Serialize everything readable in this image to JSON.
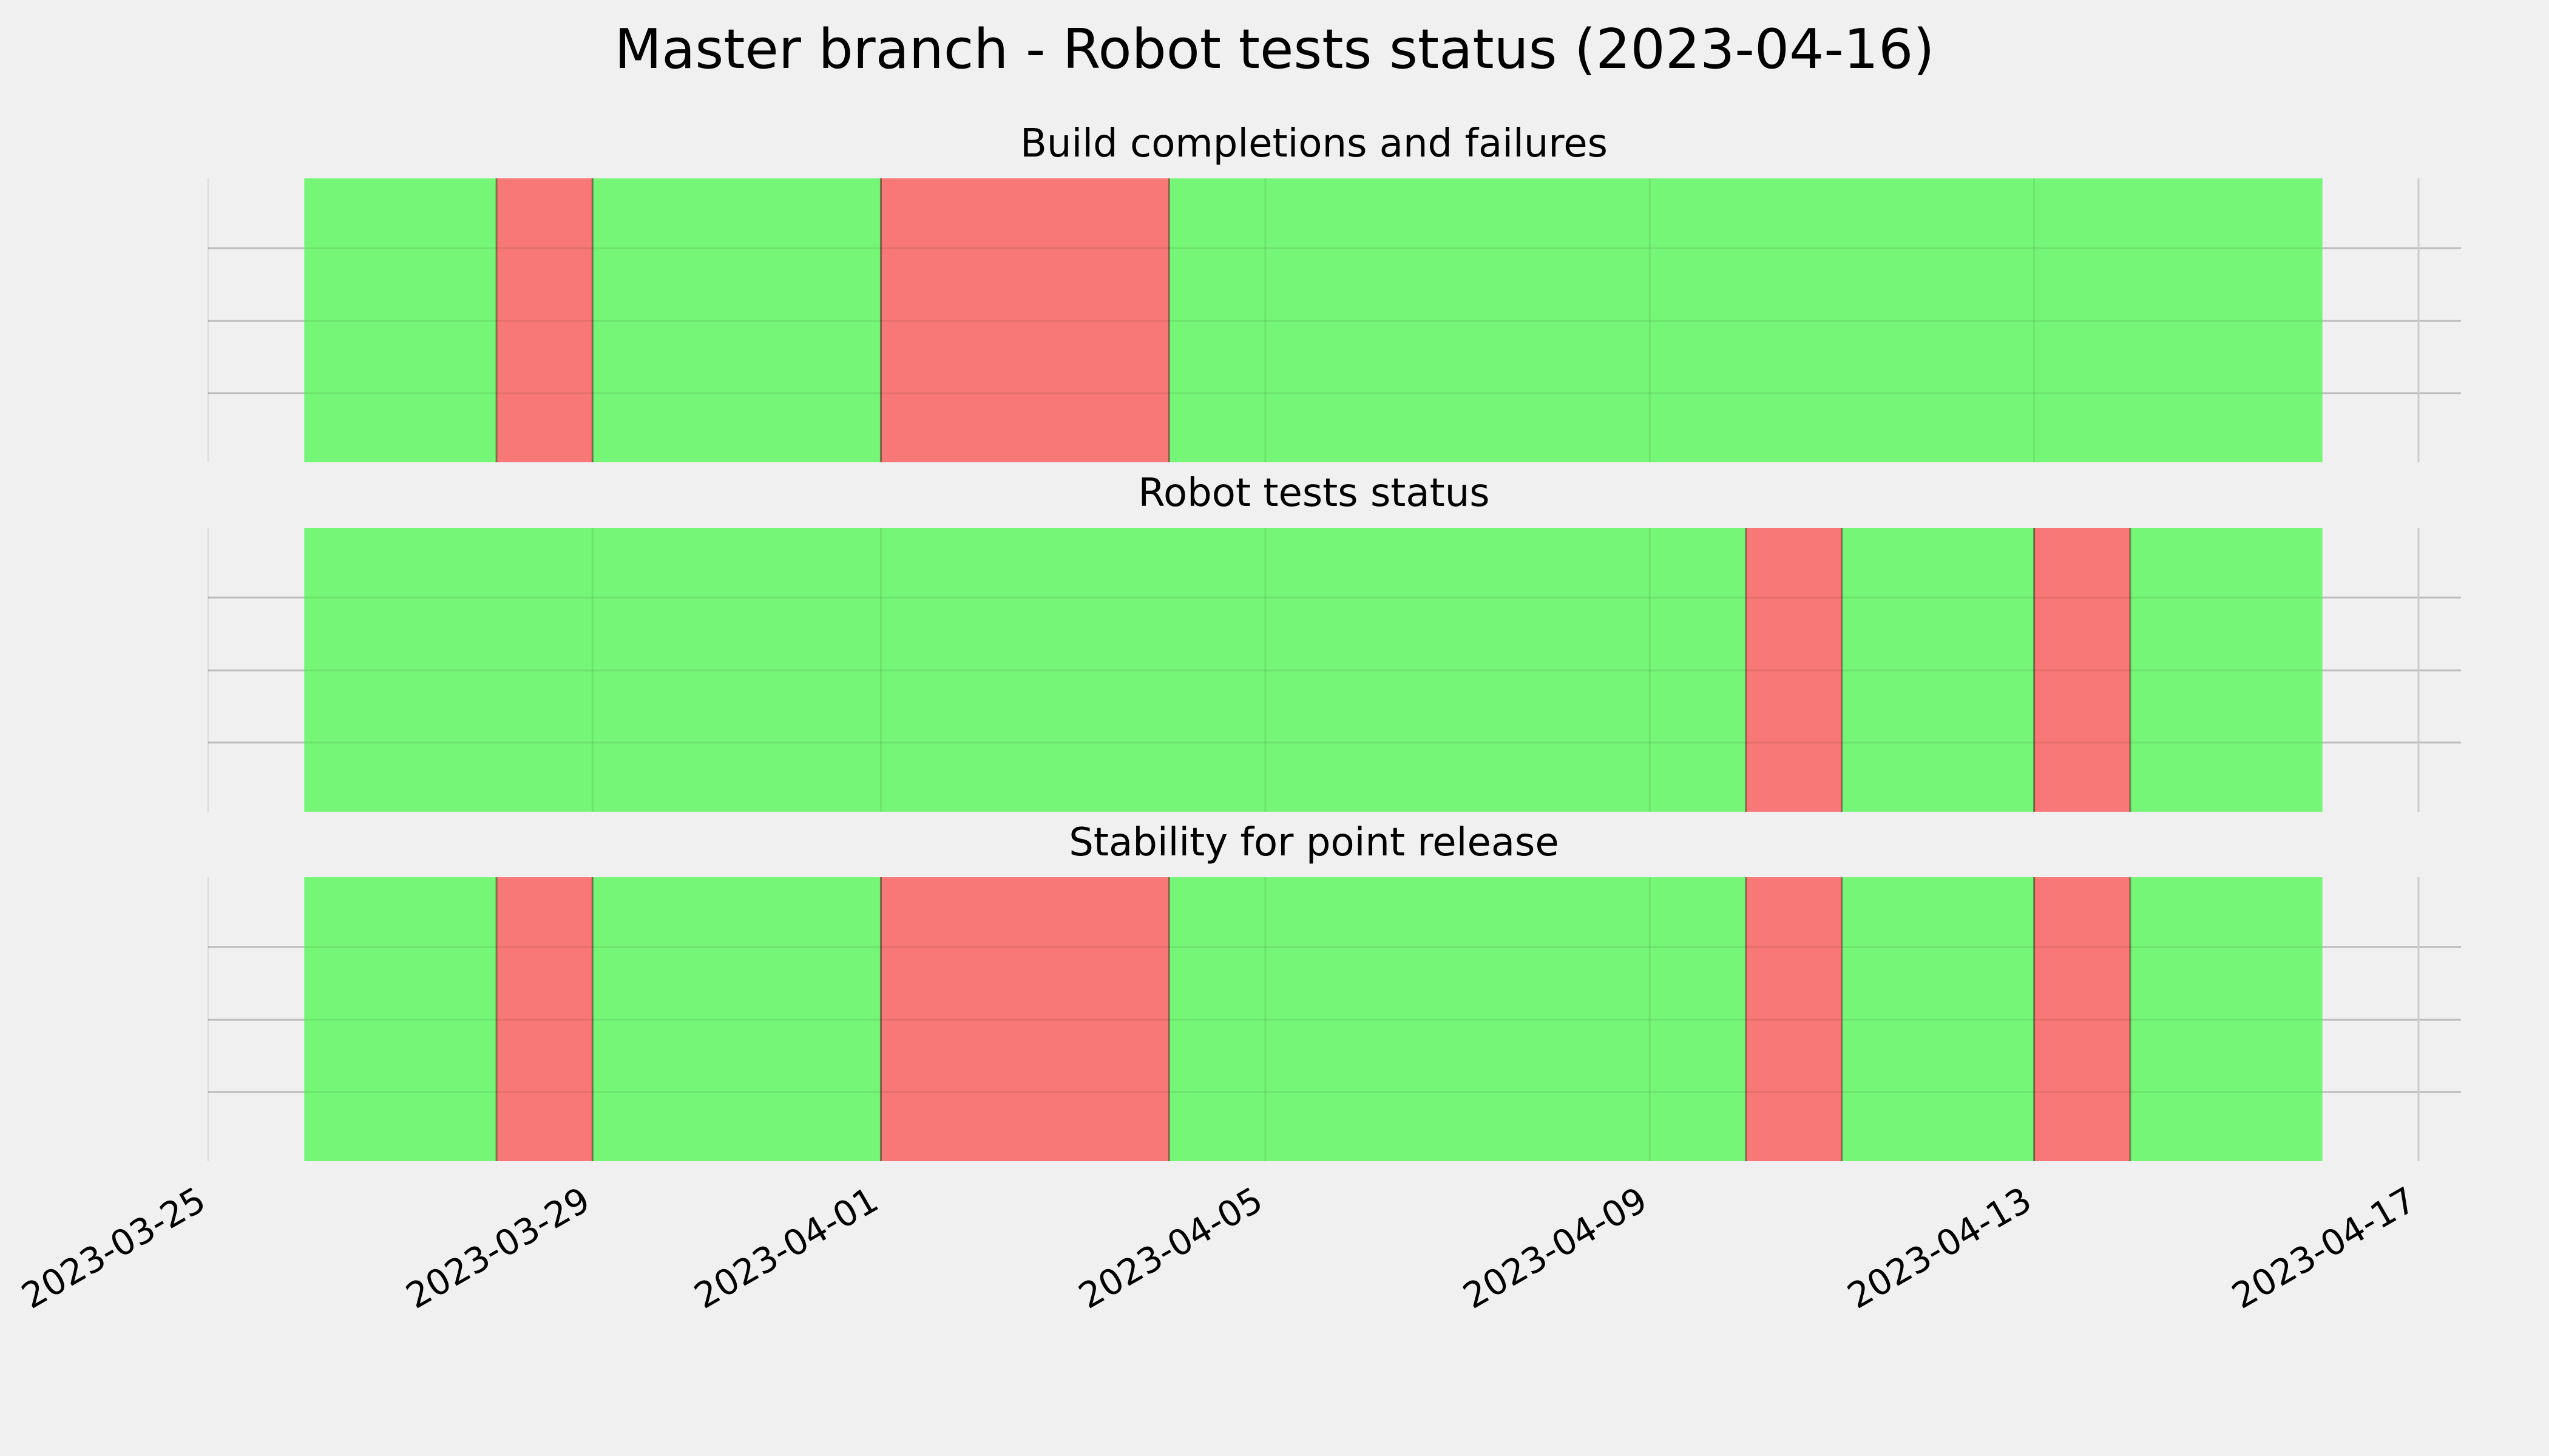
{
  "colors": {
    "background": "#f0f0f0",
    "success": "#76f676",
    "failure": "#f77876",
    "grid": "#cbcbcb"
  },
  "chart_data": {
    "type": "timeline",
    "title": "Master branch - Robot tests status (2023-04-16)",
    "xlim": [
      "2023-03-25",
      "2023-04-17"
    ],
    "x_ticks": [
      "2023-03-25",
      "2023-03-29",
      "2023-04-01",
      "2023-04-05",
      "2023-04-09",
      "2023-04-13",
      "2023-04-17"
    ],
    "grid": true,
    "panels": [
      {
        "title": "Build completions and failures",
        "segments": [
          {
            "start": "2023-03-26 00:00",
            "end": "2023-03-28 00:00",
            "status": "success"
          },
          {
            "start": "2023-03-28 00:00",
            "end": "2023-03-29 00:00",
            "status": "failure"
          },
          {
            "start": "2023-03-29 00:00",
            "end": "2023-04-01 00:00",
            "status": "success"
          },
          {
            "start": "2023-04-01 00:00",
            "end": "2023-04-04 00:00",
            "status": "failure"
          },
          {
            "start": "2023-04-04 00:00",
            "end": "2023-04-16 00:00",
            "status": "success"
          }
        ]
      },
      {
        "title": "Robot tests status",
        "segments": [
          {
            "start": "2023-03-26 00:00",
            "end": "2023-04-10 00:00",
            "status": "success"
          },
          {
            "start": "2023-04-10 00:00",
            "end": "2023-04-11 00:00",
            "status": "failure"
          },
          {
            "start": "2023-04-11 00:00",
            "end": "2023-04-13 00:00",
            "status": "success"
          },
          {
            "start": "2023-04-13 00:00",
            "end": "2023-04-14 00:00",
            "status": "failure"
          },
          {
            "start": "2023-04-14 00:00",
            "end": "2023-04-16 00:00",
            "status": "success"
          }
        ]
      },
      {
        "title": "Stability for point release",
        "segments": [
          {
            "start": "2023-03-26 00:00",
            "end": "2023-03-28 00:00",
            "status": "success"
          },
          {
            "start": "2023-03-28 00:00",
            "end": "2023-03-29 00:00",
            "status": "failure"
          },
          {
            "start": "2023-03-29 00:00",
            "end": "2023-04-01 00:00",
            "status": "success"
          },
          {
            "start": "2023-04-01 00:00",
            "end": "2023-04-04 00:00",
            "status": "failure"
          },
          {
            "start": "2023-04-04 00:00",
            "end": "2023-04-10 00:00",
            "status": "success"
          },
          {
            "start": "2023-04-10 00:00",
            "end": "2023-04-11 00:00",
            "status": "failure"
          },
          {
            "start": "2023-04-11 00:00",
            "end": "2023-04-13 00:00",
            "status": "success"
          },
          {
            "start": "2023-04-13 00:00",
            "end": "2023-04-14 00:00",
            "status": "failure"
          },
          {
            "start": "2023-04-14 00:00",
            "end": "2023-04-16 00:00",
            "status": "success"
          }
        ]
      }
    ]
  }
}
